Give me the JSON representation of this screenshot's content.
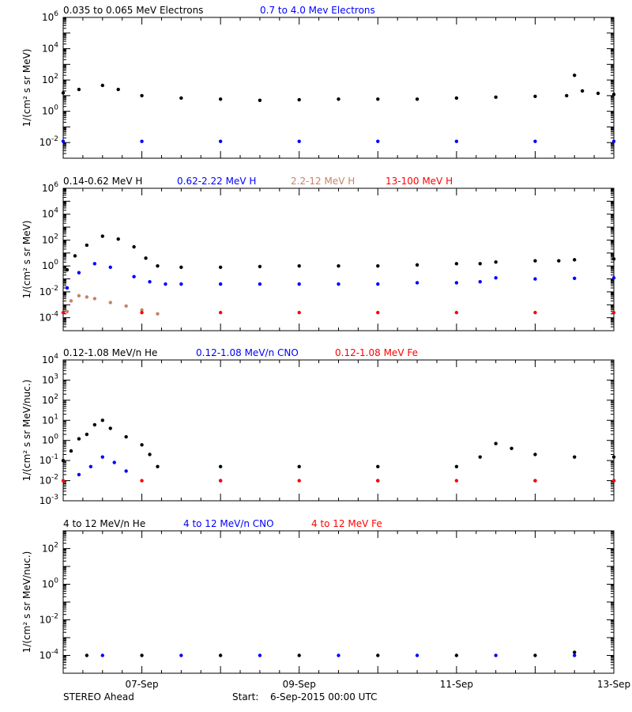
{
  "figure": {
    "spacecraft": "STEREO Ahead",
    "start_prefix": "Start:",
    "start_value": "6-Sep-2015 00:00 UTC"
  },
  "chart_data": [
    {
      "type": "scatter",
      "ylabel": "1/(cm² s sr MeV)",
      "yscale": "log",
      "ylim": [
        0.001,
        1000000
      ],
      "yticks": [
        {
          "v": 1000000,
          "mant": "10",
          "exp": "6"
        },
        {
          "v": 10000,
          "mant": "10",
          "exp": "4"
        },
        {
          "v": 100,
          "mant": "10",
          "exp": "2"
        },
        {
          "v": 1,
          "mant": "10",
          "exp": "0"
        },
        {
          "v": 0.01,
          "mant": "10",
          "exp": "-2"
        }
      ],
      "series": [
        {
          "name": "0.035 to 0.065 MeV Electrons",
          "color": "#000000",
          "x": [
            0,
            0.2,
            0.5,
            0.7,
            1.0,
            1.5,
            2.0,
            2.5,
            3.0,
            3.5,
            4.0,
            4.5,
            5.0,
            5.5,
            6.0,
            6.4,
            6.5,
            6.6,
            6.8,
            7.0
          ],
          "y": [
            15,
            25,
            45,
            25,
            10,
            7,
            6,
            5,
            5.5,
            6,
            6,
            6,
            7,
            8,
            9,
            10,
            200,
            20,
            14,
            12
          ]
        },
        {
          "name": "0.7 to 4.0 Mev Electrons",
          "color": "#0000ff",
          "x": [
            0,
            1,
            2,
            3,
            4,
            5,
            6,
            7
          ],
          "y": [
            0.012,
            0.012,
            0.012,
            0.012,
            0.012,
            0.012,
            0.012,
            0.012
          ]
        }
      ]
    },
    {
      "type": "scatter",
      "ylabel": "1/(cm² s sr MeV)",
      "yscale": "log",
      "ylim": [
        1e-05,
        1000000
      ],
      "yticks": [
        {
          "v": 1000000,
          "mant": "10",
          "exp": "6"
        },
        {
          "v": 10000,
          "mant": "10",
          "exp": "4"
        },
        {
          "v": 100,
          "mant": "10",
          "exp": "2"
        },
        {
          "v": 1,
          "mant": "10",
          "exp": "0"
        },
        {
          "v": 0.01,
          "mant": "10",
          "exp": "-2"
        },
        {
          "v": 0.0001,
          "mant": "10",
          "exp": "-4"
        }
      ],
      "series": [
        {
          "name": "0.14-0.62 MeV H",
          "color": "#000000",
          "x": [
            0.05,
            0.15,
            0.3,
            0.5,
            0.7,
            0.9,
            1.05,
            1.2,
            1.5,
            2.0,
            2.5,
            3.0,
            3.5,
            4.0,
            4.5,
            5.0,
            5.3,
            5.5,
            6.0,
            6.3,
            6.5,
            7.0
          ],
          "y": [
            0.5,
            6,
            40,
            200,
            120,
            30,
            4,
            1,
            0.8,
            0.8,
            0.9,
            1,
            1,
            1,
            1.2,
            1.5,
            1.5,
            2,
            2.5,
            2.5,
            3,
            3.5
          ]
        },
        {
          "name": "0.62-2.22 MeV H",
          "color": "#0000ff",
          "x": [
            0.05,
            0.2,
            0.4,
            0.6,
            0.9,
            1.1,
            1.3,
            1.5,
            2.0,
            2.5,
            3.0,
            3.5,
            4.0,
            4.5,
            5.0,
            5.3,
            5.5,
            6.0,
            6.5,
            7.0
          ],
          "y": [
            0.02,
            0.3,
            1.5,
            0.8,
            0.15,
            0.06,
            0.04,
            0.04,
            0.04,
            0.04,
            0.04,
            0.04,
            0.04,
            0.05,
            0.05,
            0.06,
            0.12,
            0.1,
            0.11,
            0.12
          ]
        },
        {
          "name": "2.2-12 MeV H",
          "color": "#c8826a",
          "x": [
            0.05,
            0.1,
            0.2,
            0.3,
            0.4,
            0.6,
            0.8,
            1.0,
            1.2
          ],
          "y": [
            0.0003,
            0.002,
            0.005,
            0.004,
            0.003,
            0.0015,
            0.0008,
            0.0004,
            0.0002
          ]
        },
        {
          "name": "13-100 MeV H",
          "color": "#ff0000",
          "x": [
            0,
            1,
            2,
            3,
            4,
            5,
            6,
            7
          ],
          "y": [
            0.00025,
            0.00025,
            0.00025,
            0.00025,
            0.00025,
            0.00025,
            0.00025,
            0.00025
          ]
        }
      ]
    },
    {
      "type": "scatter",
      "ylabel": "1/(cm² s sr MeV/nuc.)",
      "yscale": "log",
      "ylim": [
        0.001,
        10000
      ],
      "yticks": [
        {
          "v": 10000,
          "mant": "10",
          "exp": "4"
        },
        {
          "v": 1000,
          "mant": "10",
          "exp": "3"
        },
        {
          "v": 100,
          "mant": "10",
          "exp": "2"
        },
        {
          "v": 10,
          "mant": "10",
          "exp": "1"
        },
        {
          "v": 1,
          "mant": "10",
          "exp": "0"
        },
        {
          "v": 0.1,
          "mant": "10",
          "exp": "-1"
        },
        {
          "v": 0.01,
          "mant": "10",
          "exp": "-2"
        },
        {
          "v": 0.001,
          "mant": "10",
          "exp": "-3"
        }
      ],
      "series": [
        {
          "name": "0.12-1.08 MeV/n He",
          "color": "#000000",
          "x": [
            0,
            0.1,
            0.2,
            0.3,
            0.4,
            0.5,
            0.6,
            0.8,
            1.0,
            1.1,
            1.2,
            2.0,
            3.0,
            4.0,
            5.0,
            5.3,
            5.5,
            5.7,
            6.0,
            6.5,
            7.0
          ],
          "y": [
            0.1,
            0.3,
            1.2,
            2,
            6,
            10,
            4,
            1.5,
            0.6,
            0.2,
            0.05,
            0.05,
            0.05,
            0.05,
            0.05,
            0.15,
            0.7,
            0.4,
            0.2,
            0.15,
            0.15
          ]
        },
        {
          "name": "0.12-1.08 MeV/n CNO",
          "color": "#0000ff",
          "x": [
            0.2,
            0.35,
            0.5,
            0.65,
            0.8,
            2.0,
            4.0,
            6.0,
            7.0
          ],
          "y": [
            0.02,
            0.05,
            0.15,
            0.08,
            0.03,
            0.01,
            0.01,
            0.01,
            0.01
          ]
        },
        {
          "name": "0.12-1.08 MeV Fe",
          "color": "#ff0000",
          "x": [
            0,
            1,
            2,
            3,
            4,
            5,
            6,
            7
          ],
          "y": [
            0.01,
            0.01,
            0.01,
            0.01,
            0.01,
            0.01,
            0.01,
            0.01
          ]
        }
      ]
    },
    {
      "type": "scatter",
      "ylabel": "1/(cm² s sr MeV/nuc.)",
      "yscale": "log",
      "ylim": [
        1e-05,
        1000
      ],
      "yticks": [
        {
          "v": 100,
          "mant": "10",
          "exp": "2"
        },
        {
          "v": 1,
          "mant": "10",
          "exp": "0"
        },
        {
          "v": 0.01,
          "mant": "10",
          "exp": "-2"
        },
        {
          "v": 0.0001,
          "mant": "10",
          "exp": "-4"
        }
      ],
      "series": [
        {
          "name": "4 to 12 MeV/n He",
          "color": "#000000",
          "x": [
            0.3,
            1,
            2,
            3,
            4,
            5,
            6,
            6.5
          ],
          "y": [
            0.0001,
            0.0001,
            0.0001,
            0.0001,
            0.0001,
            0.0001,
            0.0001,
            0.00015
          ]
        },
        {
          "name": "4 to 12 MeV/n CNO",
          "color": "#0000ff",
          "x": [
            0.5,
            1.5,
            2.5,
            3.5,
            4.5,
            5.5,
            6.5
          ],
          "y": [
            0.0001,
            0.0001,
            0.0001,
            0.0001,
            0.0001,
            0.0001,
            0.0001
          ]
        },
        {
          "name": "4 to 12 MeV Fe",
          "color": "#ff0000",
          "x": [],
          "y": []
        }
      ]
    }
  ],
  "xaxis": {
    "xlim": [
      0,
      7
    ],
    "ticks": [
      {
        "v": 1,
        "label": "07-Sep"
      },
      {
        "v": 3,
        "label": "09-Sep"
      },
      {
        "v": 5,
        "label": "11-Sep"
      },
      {
        "v": 7,
        "label": "13-Sep"
      }
    ]
  }
}
